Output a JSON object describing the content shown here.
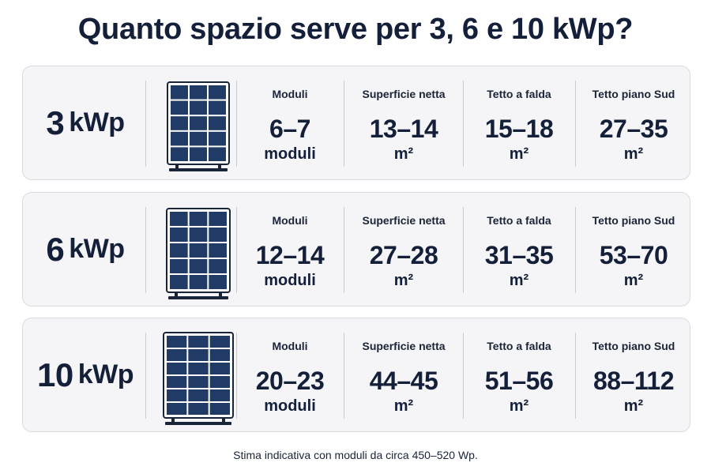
{
  "title": "Quanto spazio serve per 3, 6 e 10 kWp?",
  "colors": {
    "text_dark": "#14203a",
    "card_bg": "#f5f5f7",
    "card_border": "#d9dbe0",
    "panel_cell": "#1f3b66",
    "panel_frame": "#1a2438"
  },
  "icons": {
    "panel": "solar-panel-icon"
  },
  "rows": [
    {
      "power_value": "3",
      "power_unit": "kWp",
      "columns": [
        {
          "label": "Moduli",
          "value": "6–7",
          "unit": "moduli"
        },
        {
          "label": "Superficie netta",
          "value": "13–14",
          "unit": "m²"
        },
        {
          "label": "Tetto a falda",
          "value": "15–18",
          "unit": "m²"
        },
        {
          "label": "Tetto piano Sud",
          "value": "27–35",
          "unit": "m²"
        }
      ]
    },
    {
      "power_value": "6",
      "power_unit": "kWp",
      "columns": [
        {
          "label": "Moduli",
          "value": "12–14",
          "unit": "moduli"
        },
        {
          "label": "Superficie netta",
          "value": "27–28",
          "unit": "m²"
        },
        {
          "label": "Tetto a falda",
          "value": "31–35",
          "unit": "m²"
        },
        {
          "label": "Tetto piano Sud",
          "value": "53–70",
          "unit": "m²"
        }
      ]
    },
    {
      "power_value": "10",
      "power_unit": "kWp",
      "columns": [
        {
          "label": "Moduli",
          "value": "20–23",
          "unit": "moduli"
        },
        {
          "label": "Superficie netta",
          "value": "44–45",
          "unit": "m²"
        },
        {
          "label": "Tetto a falda",
          "value": "51–56",
          "unit": "m²"
        },
        {
          "label": "Tetto piano Sud",
          "value": "88–112",
          "unit": "m²"
        }
      ]
    }
  ],
  "footnote": "Stima indicativa con moduli da circa 450–520 Wp."
}
